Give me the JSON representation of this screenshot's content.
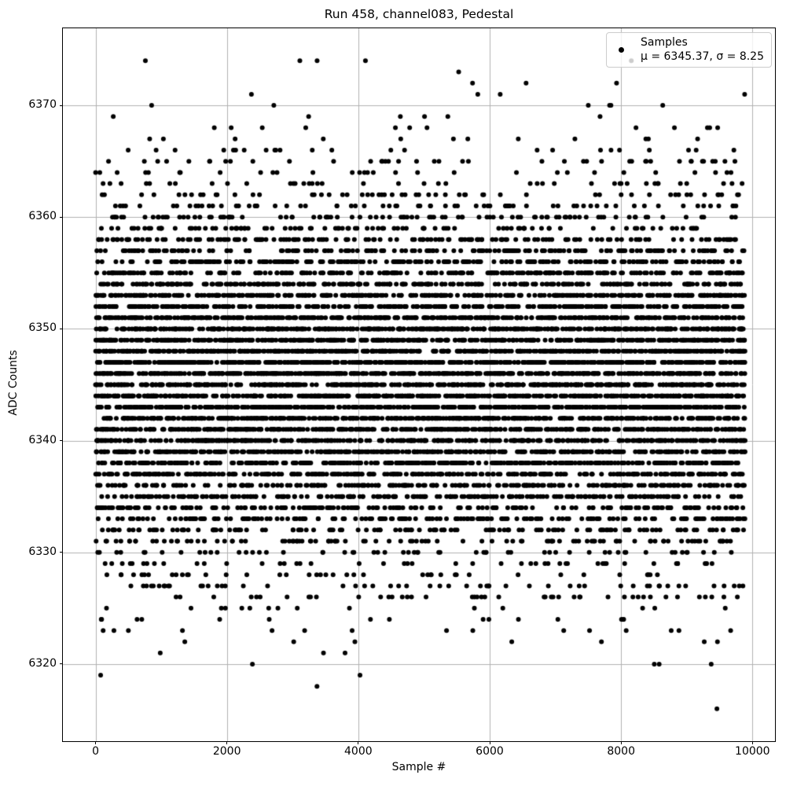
{
  "figure": {
    "title": "Run 458, channel083, Pedestal",
    "xlabel": "Sample #",
    "ylabel": "ADC Counts"
  },
  "legend": {
    "series_label": "Samples",
    "stats_label": "μ = 6345.37, σ = 8.25",
    "position": "upper right"
  },
  "chart_data": {
    "type": "scatter",
    "title": "Run 458, channel083, Pedestal",
    "xlabel": "Sample #",
    "ylabel": "ADC Counts",
    "series": [
      {
        "name": "Samples",
        "marker": "black-dot",
        "n_points": 9889,
        "x_start": 0,
        "x_step": 1,
        "x_end": 9888,
        "y_distribution": "normal-integer-quantized",
        "mean": 6345.37,
        "sigma": 8.25,
        "y_min_observed": 6316,
        "y_max_observed": 6374
      }
    ],
    "xlim": [
      -497,
      10343
    ],
    "ylim": [
      6313.1,
      6376.9
    ],
    "xticks": [
      0,
      2000,
      4000,
      6000,
      8000,
      10000
    ],
    "yticks": [
      6320,
      6330,
      6340,
      6350,
      6360,
      6370
    ],
    "grid": true,
    "legend_position": "upper right",
    "seed": 458,
    "marker_radius_px": 3,
    "colors": {
      "marker": "#000000",
      "grid": "#b0b0b0",
      "spine": "#000000",
      "background": "#ffffff",
      "legend_border": "#cccccc"
    }
  }
}
